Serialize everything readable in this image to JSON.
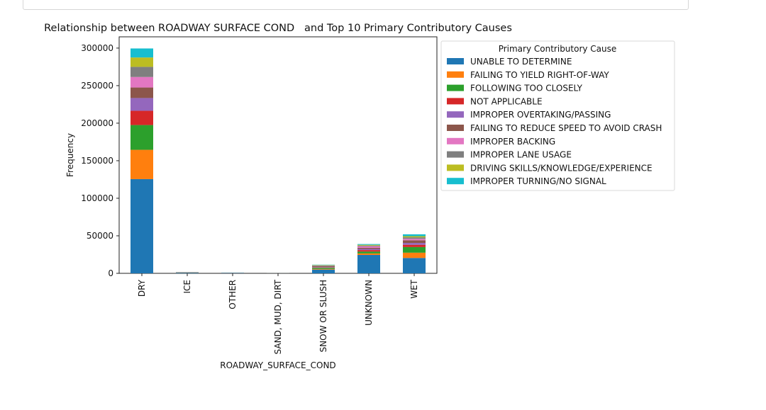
{
  "chart_data": {
    "type": "bar",
    "stacked": true,
    "title": "Relationship between ROADWAY SURFACE COND   and Top 10 Primary Contributory Causes",
    "xlabel": "ROADWAY_SURFACE_COND",
    "ylabel": "Frequency",
    "ylim": [
      0,
      315000
    ],
    "yticks": [
      0,
      50000,
      100000,
      150000,
      200000,
      250000,
      300000
    ],
    "categories": [
      "DRY",
      "ICE",
      "OTHER",
      "SAND, MUD, DIRT",
      "SNOW OR SLUSH",
      "UNKNOWN",
      "WET"
    ],
    "legend_title": "Primary Contributory Cause",
    "legend_position": "outside-right-top",
    "grid": false,
    "series": [
      {
        "name": "UNABLE TO DETERMINE",
        "color": "#1f77b4",
        "values": [
          125500,
          800,
          500,
          100,
          5000,
          24500,
          20500
        ]
      },
      {
        "name": "FAILING TO YIELD RIGHT-OF-WAY",
        "color": "#ff7f0e",
        "values": [
          39000,
          100,
          100,
          30,
          800,
          2000,
          7000
        ]
      },
      {
        "name": "FOLLOWING TOO CLOSELY",
        "color": "#2ca02c",
        "values": [
          33000,
          200,
          100,
          20,
          1500,
          2500,
          7500
        ]
      },
      {
        "name": "NOT APPLICABLE",
        "color": "#d62728",
        "values": [
          19000,
          100,
          50,
          10,
          400,
          2000,
          3000
        ]
      },
      {
        "name": "IMPROPER OVERTAKING/PASSING",
        "color": "#9467bd",
        "values": [
          17000,
          50,
          50,
          10,
          500,
          1500,
          2500
        ]
      },
      {
        "name": "FAILING TO REDUCE SPEED TO AVOID CRASH",
        "color": "#8c564b",
        "values": [
          14000,
          300,
          100,
          20,
          1500,
          1500,
          3500
        ]
      },
      {
        "name": "IMPROPER BACKING",
        "color": "#e377c2",
        "values": [
          14000,
          50,
          50,
          10,
          300,
          2000,
          2000
        ]
      },
      {
        "name": "IMPROPER LANE USAGE",
        "color": "#7f7f7f",
        "values": [
          13500,
          50,
          50,
          10,
          400,
          1000,
          2000
        ]
      },
      {
        "name": "DRIVING SKILLS/KNOWLEDGE/EXPERIENCE",
        "color": "#bcbd22",
        "values": [
          12500,
          50,
          50,
          10,
          600,
          1000,
          1500
        ]
      },
      {
        "name": "IMPROPER TURNING/NO SIGNAL",
        "color": "#17becf",
        "values": [
          12000,
          50,
          50,
          10,
          500,
          1000,
          2500
        ]
      }
    ]
  }
}
